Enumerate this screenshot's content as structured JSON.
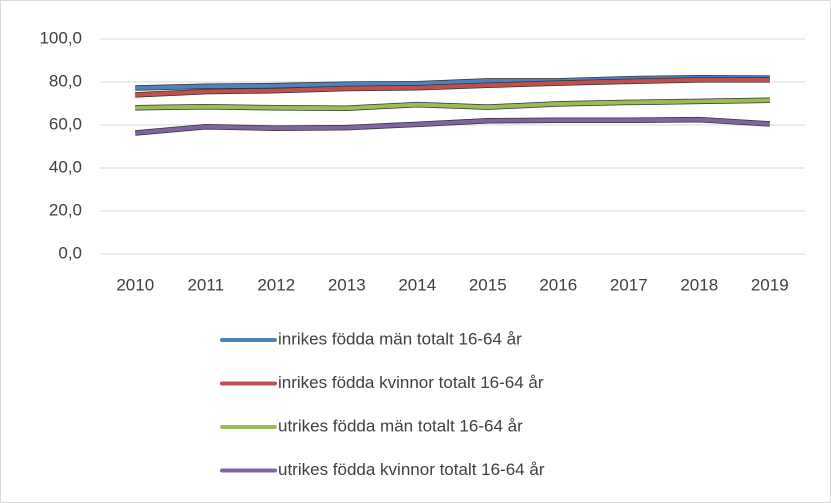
{
  "chart_data": {
    "type": "line",
    "categories": [
      "2010",
      "2011",
      "2012",
      "2013",
      "2014",
      "2015",
      "2016",
      "2017",
      "2018",
      "2019"
    ],
    "series": [
      {
        "name": "inrikes födda män totalt 16-64 år",
        "color": "#4f81bd",
        "values": [
          77.2,
          78.0,
          78.3,
          79.0,
          79.2,
          80.5,
          80.5,
          81.5,
          82.0,
          81.8
        ]
      },
      {
        "name": "inrikes födda kvinnor totalt 16-64 år",
        "color": "#c0504d",
        "values": [
          74.0,
          75.5,
          76.0,
          77.0,
          77.3,
          78.5,
          79.5,
          80.3,
          81.0,
          81.0
        ]
      },
      {
        "name": "utrikes födda män totalt 16-64 år",
        "color": "#9bbb59",
        "values": [
          68.0,
          68.5,
          68.0,
          67.8,
          69.5,
          68.3,
          69.8,
          70.5,
          71.0,
          71.5
        ]
      },
      {
        "name": "utrikes födda kvinnor totalt 16-64 år",
        "color": "#8064a2",
        "values": [
          56.3,
          59.2,
          58.5,
          58.8,
          60.3,
          62.0,
          62.2,
          62.2,
          62.5,
          60.5
        ]
      }
    ],
    "ylim": [
      0,
      100
    ],
    "yticks": [
      {
        "value": 0,
        "label": "0,0"
      },
      {
        "value": 20,
        "label": "20,0"
      },
      {
        "value": 40,
        "label": "40,0"
      },
      {
        "value": 60,
        "label": "60,0"
      },
      {
        "value": 80,
        "label": "80,0"
      },
      {
        "value": 100,
        "label": "100,0"
      }
    ],
    "grid": true,
    "legend": "bottom"
  }
}
